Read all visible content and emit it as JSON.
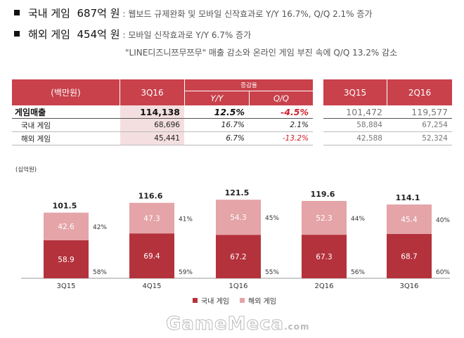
{
  "summary": {
    "domestic": {
      "label": "국내 게임",
      "amount": "687억 원",
      "desc": ": 웹보드 규제완화 및 모바일 신작효과로 Y/Y 16.7%, Q/Q 2.1% 증가"
    },
    "overseas": {
      "label": "해외 게임",
      "amount": "454억 원",
      "desc": ": 모바일 신작효과로 Y/Y 6.7% 증가"
    },
    "note": "\"LINE디즈니쯔무쯔무\" 매출 감소와 온라인 게임 부진 속에 Q/Q 13.2% 감소"
  },
  "table": {
    "unit_label": "(백만원)",
    "current_col": "3Q16",
    "change_group": "증감율",
    "yy": "Y/Y",
    "qq": "Q/Q",
    "prev_cols": [
      "3Q15",
      "2Q16"
    ],
    "rows": [
      {
        "label": "게임매출",
        "current": "114,138",
        "yy": "12.5%",
        "qq": "-4.5%",
        "prev1": "101,472",
        "prev2": "119,577"
      },
      {
        "label": "국내 게임",
        "current": "68,696",
        "yy": "16.7%",
        "qq": "2.1%",
        "prev1": "58,884",
        "prev2": "67,254"
      },
      {
        "label": "해외 게임",
        "current": "45,441",
        "yy": "6.7%",
        "qq": "-13.2%",
        "prev1": "42,588",
        "prev2": "52,324"
      }
    ]
  },
  "chart_data": {
    "type": "bar",
    "stacked": true,
    "unit_label": "(십억원)",
    "categories": [
      "3Q15",
      "4Q15",
      "1Q16",
      "2Q16",
      "3Q16"
    ],
    "series": [
      {
        "name": "국내 게임",
        "color": "#b4323c",
        "values": [
          58.9,
          69.4,
          67.2,
          67.3,
          68.7
        ],
        "shares": [
          "58%",
          "59%",
          "55%",
          "56%",
          "60%"
        ]
      },
      {
        "name": "해외 게임",
        "color": "#e4a4a8",
        "values": [
          42.6,
          47.3,
          54.3,
          52.3,
          45.4
        ],
        "shares": [
          "42%",
          "41%",
          "45%",
          "44%",
          "40%"
        ]
      }
    ],
    "totals": [
      "101.5",
      "116.6",
      "121.5",
      "119.6",
      "114.1"
    ],
    "ylim": [
      0,
      130
    ]
  },
  "watermark": {
    "brand": "GameMeca",
    "suffix": ".com"
  }
}
